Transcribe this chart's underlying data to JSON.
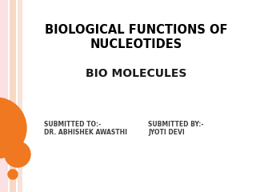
{
  "title_line1": "BIOLOGICAL FUNCTIONS OF",
  "title_line2": "NUCLEOTIDES",
  "subtitle": "BIO MOLECULES",
  "submitted_to_label": "SUBMITTED TO:-",
  "submitted_to_name": "DR. ABHISHEK AWASTHI",
  "submitted_by_label": "SUBMITTED BY:-",
  "submitted_by_name": "JYOTI DEVI",
  "bg_color": "#ffffff",
  "stripe_color1": "#f5c8b0",
  "stripe_color2": "#fadadc",
  "circle_color": "#f07820",
  "title_color": "#000000",
  "subtitle_color": "#1a1a1a",
  "footer_color": "#404040"
}
